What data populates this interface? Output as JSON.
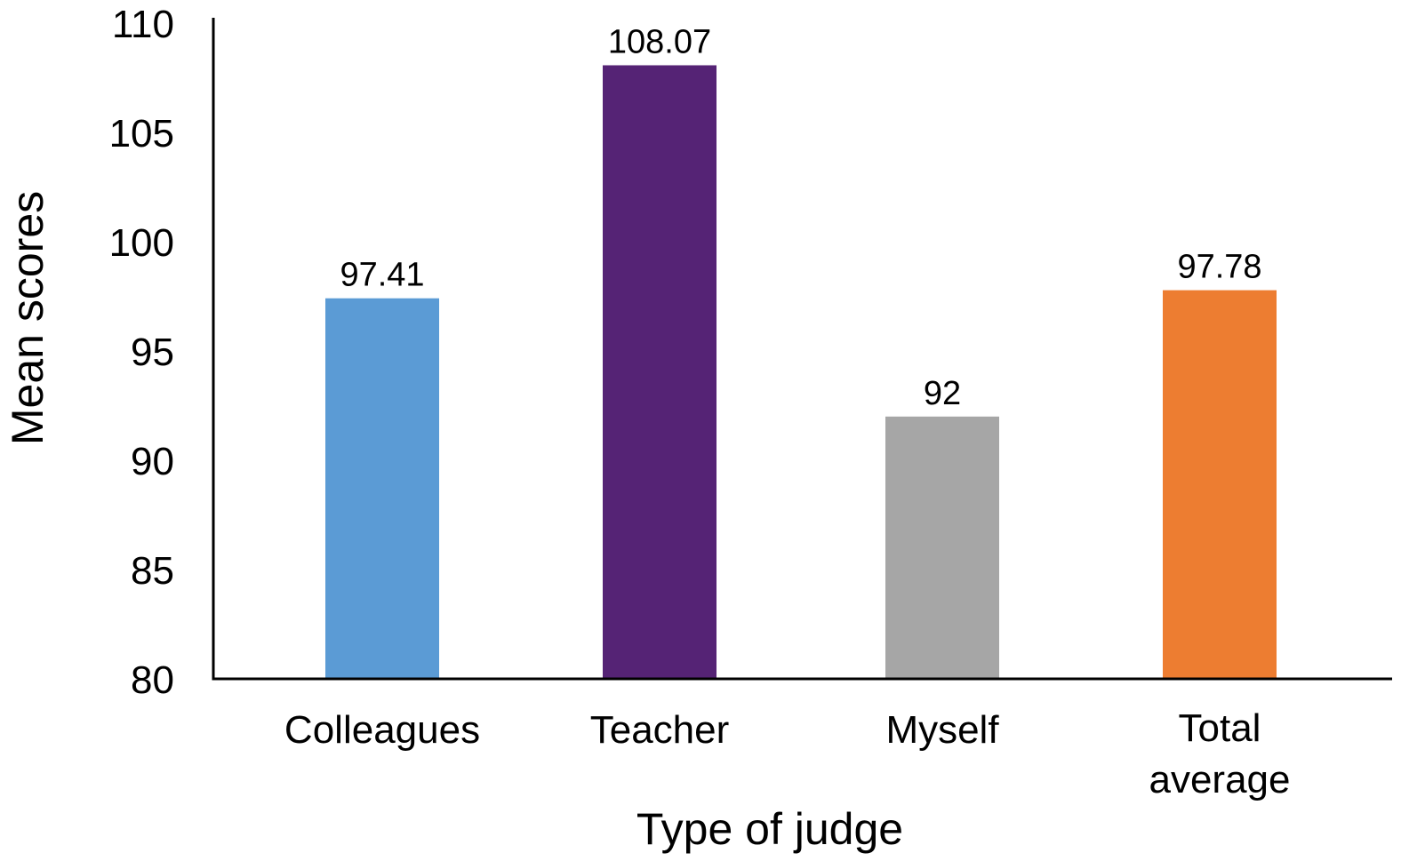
{
  "chart_data": {
    "type": "bar",
    "title": "",
    "xlabel": "Type of judge",
    "ylabel": "Mean scores",
    "ylim": [
      80,
      110
    ],
    "yticks": [
      80,
      85,
      90,
      95,
      100,
      105,
      110
    ],
    "grid": false,
    "legend": "none",
    "categories": [
      [
        "Colleagues"
      ],
      [
        "Teacher"
      ],
      [
        "Myself"
      ],
      [
        "Total",
        "average"
      ]
    ],
    "values": [
      97.41,
      108.07,
      92,
      97.78
    ],
    "value_labels": [
      "97.41",
      "108.07",
      "92",
      "97.78"
    ],
    "colors": [
      "#5b9bd5",
      "#552375",
      "#a6a6a6",
      "#ed7d31"
    ]
  }
}
